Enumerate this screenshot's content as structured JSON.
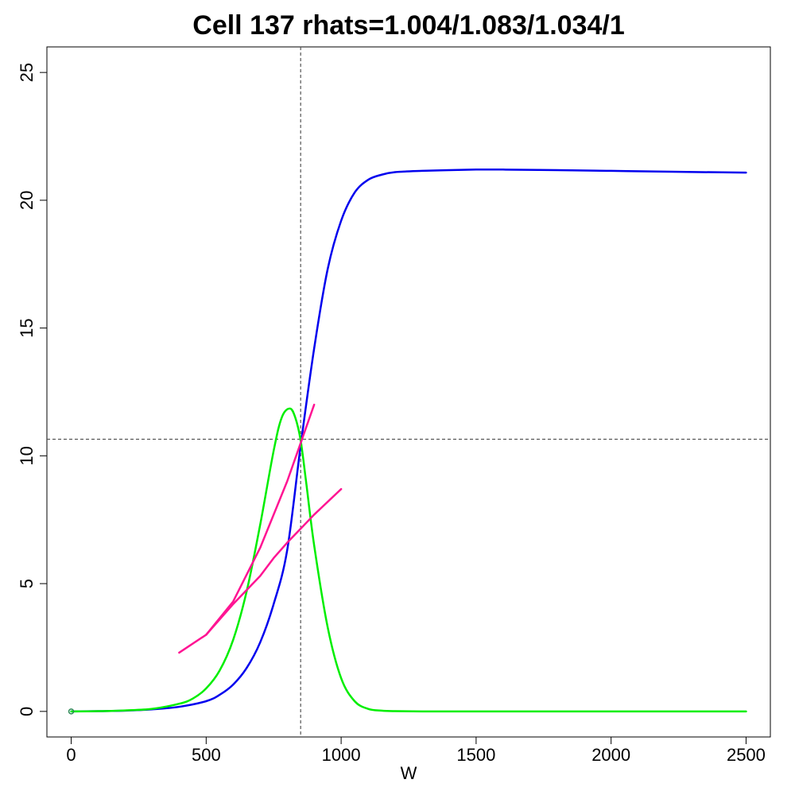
{
  "chart_data": {
    "type": "line",
    "title": "Cell 137 rhats=1.004/1.083/1.034/1",
    "xlabel": "W",
    "ylabel": "",
    "xlim": [
      -90,
      2590
    ],
    "ylim": [
      -1,
      26
    ],
    "x_ticks": [
      "0",
      "500",
      "1000",
      "1500",
      "2000",
      "2500"
    ],
    "y_ticks": [
      "0",
      "5",
      "10",
      "15",
      "20",
      "25"
    ],
    "grid": false,
    "reference_lines": {
      "vertical_x": 850,
      "horizontal_y": 10.65,
      "color": "#555555",
      "style": "dashed"
    },
    "point": {
      "x": 0,
      "y": 0,
      "color": "#2e8b57"
    },
    "series": [
      {
        "color": "#0000ee",
        "x": [
          0,
          100,
          200,
          300,
          400,
          500,
          550,
          600,
          650,
          700,
          750,
          800,
          850,
          900,
          950,
          1000,
          1050,
          1100,
          1150,
          1200,
          1300,
          1400,
          1500,
          1600,
          1800,
          2000,
          2200,
          2500
        ],
        "y": [
          0,
          0.01,
          0.03,
          0.08,
          0.18,
          0.4,
          0.65,
          1.05,
          1.7,
          2.7,
          4.2,
          6.3,
          10.4,
          14.2,
          17.3,
          19.2,
          20.3,
          20.8,
          21.0,
          21.1,
          21.15,
          21.18,
          21.2,
          21.2,
          21.18,
          21.15,
          21.12,
          21.08
        ]
      },
      {
        "color": "#00ee00",
        "x": [
          0,
          100,
          200,
          300,
          400,
          450,
          500,
          550,
          600,
          650,
          700,
          750,
          780,
          810,
          830,
          850,
          870,
          900,
          950,
          1000,
          1050,
          1100,
          1150,
          1200,
          1300,
          1500,
          2000,
          2500
        ],
        "y": [
          0,
          0.01,
          0.04,
          0.1,
          0.3,
          0.5,
          0.9,
          1.6,
          2.8,
          4.7,
          7.3,
          10.2,
          11.5,
          11.85,
          11.5,
          10.6,
          9.0,
          6.5,
          3.3,
          1.3,
          0.4,
          0.1,
          0.03,
          0.01,
          0,
          0,
          0,
          0
        ]
      },
      {
        "color": "#ff1493",
        "x": [
          400,
          500,
          600,
          700,
          800,
          900
        ],
        "y": [
          2.3,
          3.0,
          4.3,
          6.4,
          9.0,
          12.0
        ]
      },
      {
        "color": "#ff1493",
        "x": [
          500,
          600,
          700,
          750,
          800,
          900,
          1000
        ],
        "y": [
          3.0,
          4.2,
          5.3,
          6.0,
          6.6,
          7.7,
          8.7
        ]
      }
    ]
  }
}
